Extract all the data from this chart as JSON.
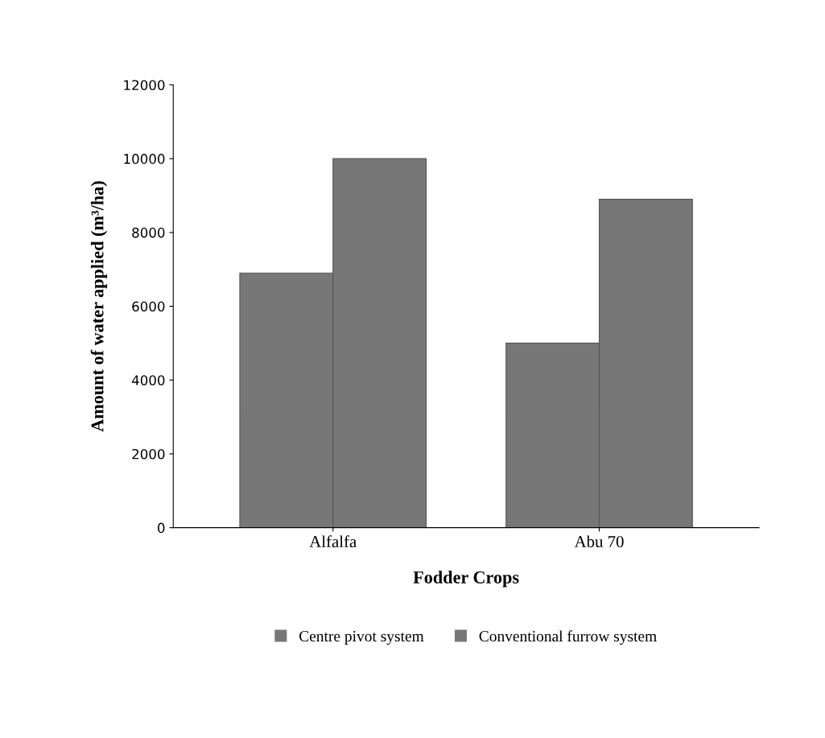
{
  "chart_data": {
    "type": "bar",
    "xlabel": "Fodder Crops",
    "ylabel": "Amount of water applied (m³/ha)",
    "categories": [
      "Alfalfa",
      "Abu 70"
    ],
    "series": [
      {
        "name": "Centre pivot system",
        "color": "#777777",
        "values": [
          6900,
          5000
        ]
      },
      {
        "name": "Conventional furrow system",
        "color": "#777777",
        "values": [
          10000,
          8900
        ]
      }
    ],
    "ylim": [
      0,
      12000
    ],
    "yticks": [
      0,
      2000,
      4000,
      6000,
      8000,
      10000,
      12000
    ],
    "grid": false,
    "legend": "bottom"
  }
}
